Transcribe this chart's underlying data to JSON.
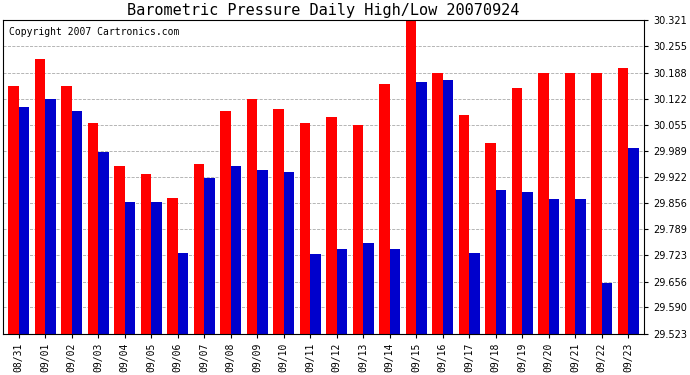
{
  "title": "Barometric Pressure Daily High/Low 20070924",
  "copyright": "Copyright 2007 Cartronics.com",
  "background_color": "#ffffff",
  "plot_background": "#ffffff",
  "bar_width": 0.4,
  "ylim": [
    29.523,
    30.321
  ],
  "yticks": [
    30.321,
    30.255,
    30.188,
    30.122,
    30.055,
    29.989,
    29.922,
    29.856,
    29.789,
    29.723,
    29.656,
    29.59,
    29.523
  ],
  "dates": [
    "08/31",
    "09/01",
    "09/02",
    "09/03",
    "09/04",
    "09/05",
    "09/06",
    "09/07",
    "09/08",
    "09/09",
    "09/10",
    "09/11",
    "09/12",
    "09/13",
    "09/14",
    "09/15",
    "09/16",
    "09/17",
    "09/18",
    "09/19",
    "09/20",
    "09/21",
    "09/22",
    "09/23"
  ],
  "highs": [
    30.155,
    30.222,
    30.155,
    30.06,
    29.95,
    29.93,
    29.87,
    29.955,
    30.09,
    30.122,
    30.095,
    30.06,
    30.075,
    30.055,
    30.16,
    30.321,
    30.188,
    30.08,
    30.01,
    30.15,
    30.188,
    30.188,
    30.188,
    30.2
  ],
  "lows": [
    30.1,
    30.12,
    30.09,
    29.985,
    29.858,
    29.858,
    29.73,
    29.92,
    29.95,
    29.94,
    29.935,
    29.725,
    29.74,
    29.755,
    29.74,
    30.165,
    30.168,
    29.73,
    29.89,
    29.885,
    29.865,
    29.865,
    29.653,
    29.995
  ],
  "high_color": "#ff0000",
  "low_color": "#0000cc",
  "grid_color": "#aaaaaa",
  "title_fontsize": 11,
  "tick_fontsize": 7,
  "copyright_fontsize": 7
}
